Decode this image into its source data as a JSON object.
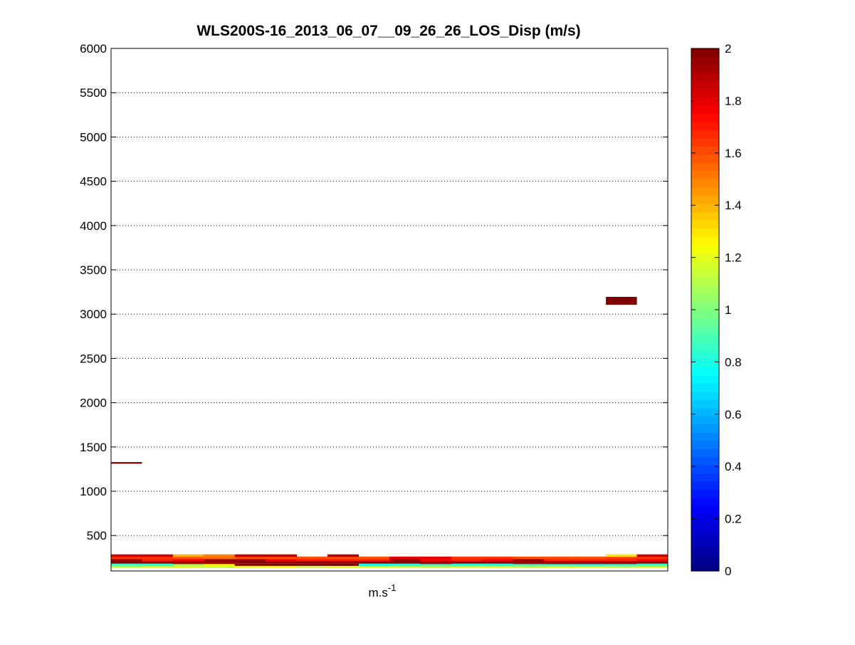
{
  "chart_data": {
    "type": "heatmap",
    "title": "WLS200S-16_2013_06_07__09_26_26_LOS_Disp (m/s)",
    "xlabel": "m.s",
    "xlabel_superscript": "-1",
    "ylabel": "",
    "ylim": [
      100,
      6000
    ],
    "yticks": [
      500,
      1000,
      1500,
      2000,
      2500,
      3000,
      3500,
      4000,
      4500,
      5000,
      5500,
      6000
    ],
    "grid": true,
    "grid_axis": "y",
    "colormap": "jet",
    "colorbar": {
      "range": [
        0,
        2
      ],
      "ticks": [
        0,
        0.2,
        0.4,
        0.6,
        0.8,
        1,
        1.2,
        1.4,
        1.6,
        1.8,
        2
      ],
      "tick_labels": [
        "0",
        "0.2",
        "0.4",
        "0.6",
        "0.8",
        "1",
        "1.2",
        "1.4",
        "1.6",
        "1.8",
        "2"
      ]
    },
    "columns": 18,
    "row_altitudes": [
      150,
      175,
      200,
      225,
      250,
      275
    ],
    "values": [
      [
        1.15,
        1.2,
        1.2,
        1.15,
        1.25,
        1.25,
        1.15,
        1.2,
        1.2,
        1.2,
        1.15,
        1.2,
        1.2,
        1.15,
        1.2,
        1.2,
        1.15,
        1.2
      ],
      [
        0.85,
        0.85,
        1.05,
        1.25,
        1.3,
        1.35,
        0.75,
        0.8,
        0.75,
        0.8,
        0.85,
        0.8,
        0.8,
        0.85,
        0.8,
        0.75,
        0.8,
        0.85
      ],
      [
        2.0,
        2.0,
        2.0,
        2.0,
        2.0,
        2.0,
        2.0,
        2.0,
        2.0,
        2.0,
        2.0,
        2.0,
        2.0,
        2.0,
        2.0,
        2.0,
        2.0,
        2.0
      ],
      [
        1.95,
        1.7,
        1.75,
        1.95,
        1.95,
        1.75,
        1.7,
        1.7,
        1.7,
        1.95,
        1.75,
        1.7,
        1.75,
        1.95,
        1.7,
        1.7,
        1.7,
        1.75
      ],
      [
        1.65,
        1.65,
        1.6,
        1.55,
        1.6,
        1.6,
        1.6,
        1.6,
        1.6,
        1.8,
        1.8,
        1.65,
        1.65,
        1.6,
        1.6,
        1.6,
        1.65,
        1.65
      ],
      [
        1.85,
        1.85,
        1.4,
        1.5,
        1.85,
        1.85,
        null,
        1.9,
        null,
        null,
        null,
        null,
        null,
        null,
        null,
        null,
        1.3,
        1.85
      ]
    ],
    "thin_lines": [
      {
        "column": 2,
        "altitude": 190,
        "value": 1.9
      },
      {
        "column": 3,
        "altitude": 190,
        "value": 1.9
      },
      {
        "column": 4,
        "altitude": 170,
        "value": 2.0
      },
      {
        "column": 5,
        "altitude": 170,
        "value": 2.0
      },
      {
        "column": 6,
        "altitude": 170,
        "value": 2.0
      },
      {
        "column": 7,
        "altitude": 170,
        "value": 2.0
      },
      {
        "column": 10,
        "altitude": 190,
        "value": 1.9
      },
      {
        "column": 13,
        "altitude": 190,
        "value": 1.9
      },
      {
        "column": 14,
        "altitude": 190,
        "value": 1.9
      },
      {
        "column": 15,
        "altitude": 190,
        "value": 1.9
      },
      {
        "column": 16,
        "altitude": 190,
        "value": 1.9
      }
    ],
    "isolated_cells": [
      {
        "column": 0,
        "altitude": 1320,
        "height": 18,
        "value": 2.0
      },
      {
        "column": 16,
        "altitude": 3150,
        "height": 90,
        "value": 2.0
      }
    ]
  }
}
